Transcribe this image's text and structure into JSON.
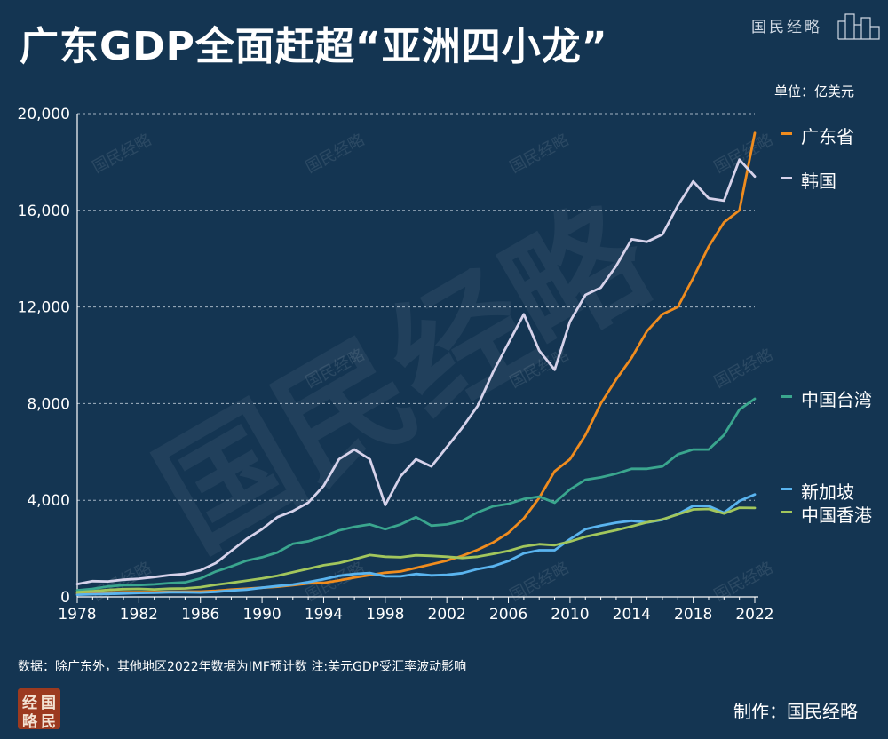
{
  "title": "广东GDP全面赶超“亚洲四小龙”",
  "brand": "国民经略",
  "unit_label": "单位：亿美元",
  "footnote": "数据：除广东外，其他地区2022年数据为IMF预计数 注:美元GDP受汇率波动影响",
  "maker": "制作：国民经略",
  "logo_chars": [
    "经",
    "国",
    "略",
    "民"
  ],
  "watermark": "国民经略",
  "chart_data": {
    "type": "line",
    "xlabel": "",
    "ylabel": "",
    "xlim": [
      1978,
      2022
    ],
    "ylim": [
      0,
      20000
    ],
    "x_ticks": [
      "1978",
      "1982",
      "1986",
      "1990",
      "1994",
      "1998",
      "2002",
      "2006",
      "2010",
      "2014",
      "2018",
      "2022"
    ],
    "y_ticks": [
      "20,000",
      "16,000",
      "12,000",
      "8,000",
      "4,000",
      "0"
    ],
    "grid": true,
    "legend_position": "right",
    "x": [
      1978,
      1979,
      1980,
      1981,
      1982,
      1983,
      1984,
      1985,
      1986,
      1987,
      1988,
      1989,
      1990,
      1991,
      1992,
      1993,
      1994,
      1995,
      1996,
      1997,
      1998,
      1999,
      2000,
      2001,
      2002,
      2003,
      2004,
      2005,
      2006,
      2007,
      2008,
      2009,
      2010,
      2011,
      2012,
      2013,
      2014,
      2015,
      2016,
      2017,
      2018,
      2019,
      2020,
      2021,
      2022
    ],
    "series": [
      {
        "name": "广东省",
        "color": "#f08c1e",
        "values": [
          140,
          160,
          180,
          190,
          200,
          200,
          210,
          220,
          220,
          250,
          300,
          340,
          380,
          420,
          480,
          560,
          580,
          680,
          800,
          900,
          1000,
          1050,
          1200,
          1350,
          1500,
          1700,
          1950,
          2250,
          2650,
          3250,
          4100,
          5200,
          5700,
          6700,
          8000,
          9000,
          9900,
          11000,
          11700,
          12000,
          13200,
          14500,
          15500,
          16000,
          19200
        ]
      },
      {
        "name": "韩国",
        "color": "#d6d2ea",
        "values": [
          530,
          650,
          640,
          710,
          750,
          820,
          900,
          950,
          1100,
          1400,
          1900,
          2400,
          2800,
          3300,
          3550,
          3900,
          4600,
          5700,
          6100,
          5700,
          3800,
          5000,
          5700,
          5400,
          6200,
          7000,
          7900,
          9300,
          10500,
          11700,
          10200,
          9400,
          11400,
          12500,
          12800,
          13700,
          14800,
          14700,
          15000,
          16200,
          17200,
          16500,
          16400,
          18100,
          17400
        ]
      },
      {
        "name": "中国台湾",
        "color": "#3aa68e",
        "values": [
          270,
          330,
          430,
          480,
          490,
          520,
          570,
          600,
          760,
          1050,
          1260,
          1500,
          1640,
          1840,
          2200,
          2300,
          2500,
          2750,
          2900,
          3000,
          2800,
          3000,
          3300,
          2950,
          3000,
          3150,
          3500,
          3750,
          3850,
          4050,
          4150,
          3900,
          4450,
          4850,
          4950,
          5100,
          5300,
          5300,
          5400,
          5900,
          6100,
          6100,
          6700,
          7750,
          8200
        ]
      },
      {
        "name": "新加坡",
        "color": "#5ab4ef",
        "values": [
          90,
          110,
          120,
          140,
          160,
          170,
          190,
          190,
          180,
          210,
          260,
          300,
          380,
          450,
          510,
          610,
          730,
          870,
          950,
          990,
          850,
          850,
          950,
          890,
          910,
          980,
          1150,
          1270,
          1480,
          1800,
          1930,
          1930,
          2390,
          2800,
          2950,
          3070,
          3150,
          3080,
          3190,
          3430,
          3770,
          3760,
          3480,
          3970,
          4240
        ]
      },
      {
        "name": "中国香港",
        "color": "#a2c65c",
        "values": [
          190,
          230,
          290,
          320,
          330,
          310,
          340,
          350,
          400,
          500,
          580,
          670,
          760,
          870,
          1020,
          1160,
          1310,
          1400,
          1560,
          1730,
          1660,
          1640,
          1720,
          1700,
          1660,
          1610,
          1660,
          1780,
          1900,
          2090,
          2180,
          2140,
          2290,
          2490,
          2630,
          2760,
          2920,
          3090,
          3210,
          3410,
          3620,
          3640,
          3450,
          3690,
          3680
        ]
      }
    ]
  }
}
